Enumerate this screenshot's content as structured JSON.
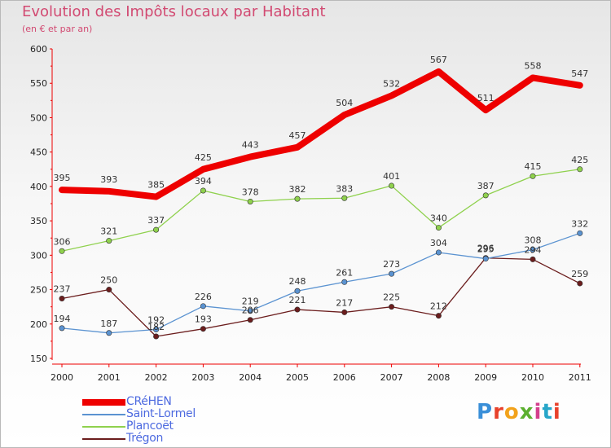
{
  "title": "Evolution des Impôts locaux par Habitant",
  "subtitle": "(en € et par an)",
  "logo_text": "Proxiti",
  "chart_data": {
    "type": "line",
    "x": [
      "2000",
      "2001",
      "2002",
      "2003",
      "2004",
      "2005",
      "2006",
      "2007",
      "2008",
      "2009",
      "2010",
      "2011"
    ],
    "ylim": [
      150,
      600
    ],
    "yticks": [
      150,
      200,
      250,
      300,
      350,
      400,
      450,
      500,
      550,
      600
    ],
    "grid": false,
    "legend_position": "bottom-left",
    "series": [
      {
        "name": "CRéHEN",
        "color": "#ee0000",
        "values": [
          395,
          393,
          385,
          425,
          443,
          457,
          504,
          532,
          567,
          511,
          558,
          547
        ]
      },
      {
        "name": "Saint-Lormel",
        "color": "#5b93d1",
        "values": [
          194,
          187,
          192,
          226,
          219,
          248,
          261,
          273,
          304,
          295,
          308,
          332
        ]
      },
      {
        "name": "Plancoët",
        "color": "#8fd14d",
        "values": [
          306,
          321,
          337,
          394,
          378,
          382,
          383,
          401,
          340,
          387,
          415,
          425
        ]
      },
      {
        "name": "Trégon",
        "color": "#6b1d1d",
        "values": [
          237,
          250,
          182,
          193,
          206,
          221,
          217,
          225,
          212,
          296,
          294,
          259
        ]
      }
    ]
  }
}
